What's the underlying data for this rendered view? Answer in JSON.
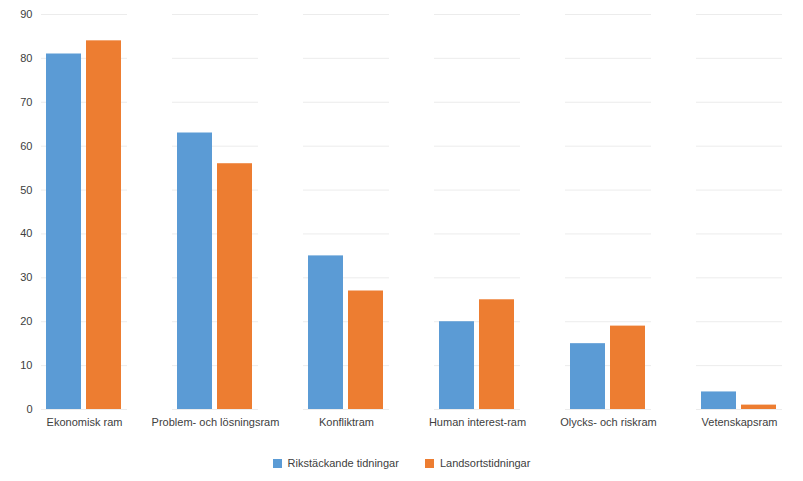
{
  "chart_data": {
    "type": "bar",
    "categories": [
      "Ekonomisk ram",
      "Problem- och lösningsram",
      "Konfliktram",
      "Human interest-ram",
      "Olycks- och riskram",
      "Vetenskapsram"
    ],
    "series": [
      {
        "name": "Rikstäckande tidningar",
        "color": "#5b9bd5",
        "values": [
          81,
          63,
          35,
          20,
          15,
          4
        ]
      },
      {
        "name": "Landsortstidningar",
        "color": "#ed7d31",
        "values": [
          84,
          56,
          27,
          25,
          19,
          1
        ]
      }
    ],
    "ylim": [
      0,
      90
    ],
    "yticks": [
      0,
      10,
      20,
      30,
      40,
      50,
      60,
      70,
      80,
      90
    ],
    "grid": true,
    "legend": "bottom"
  }
}
